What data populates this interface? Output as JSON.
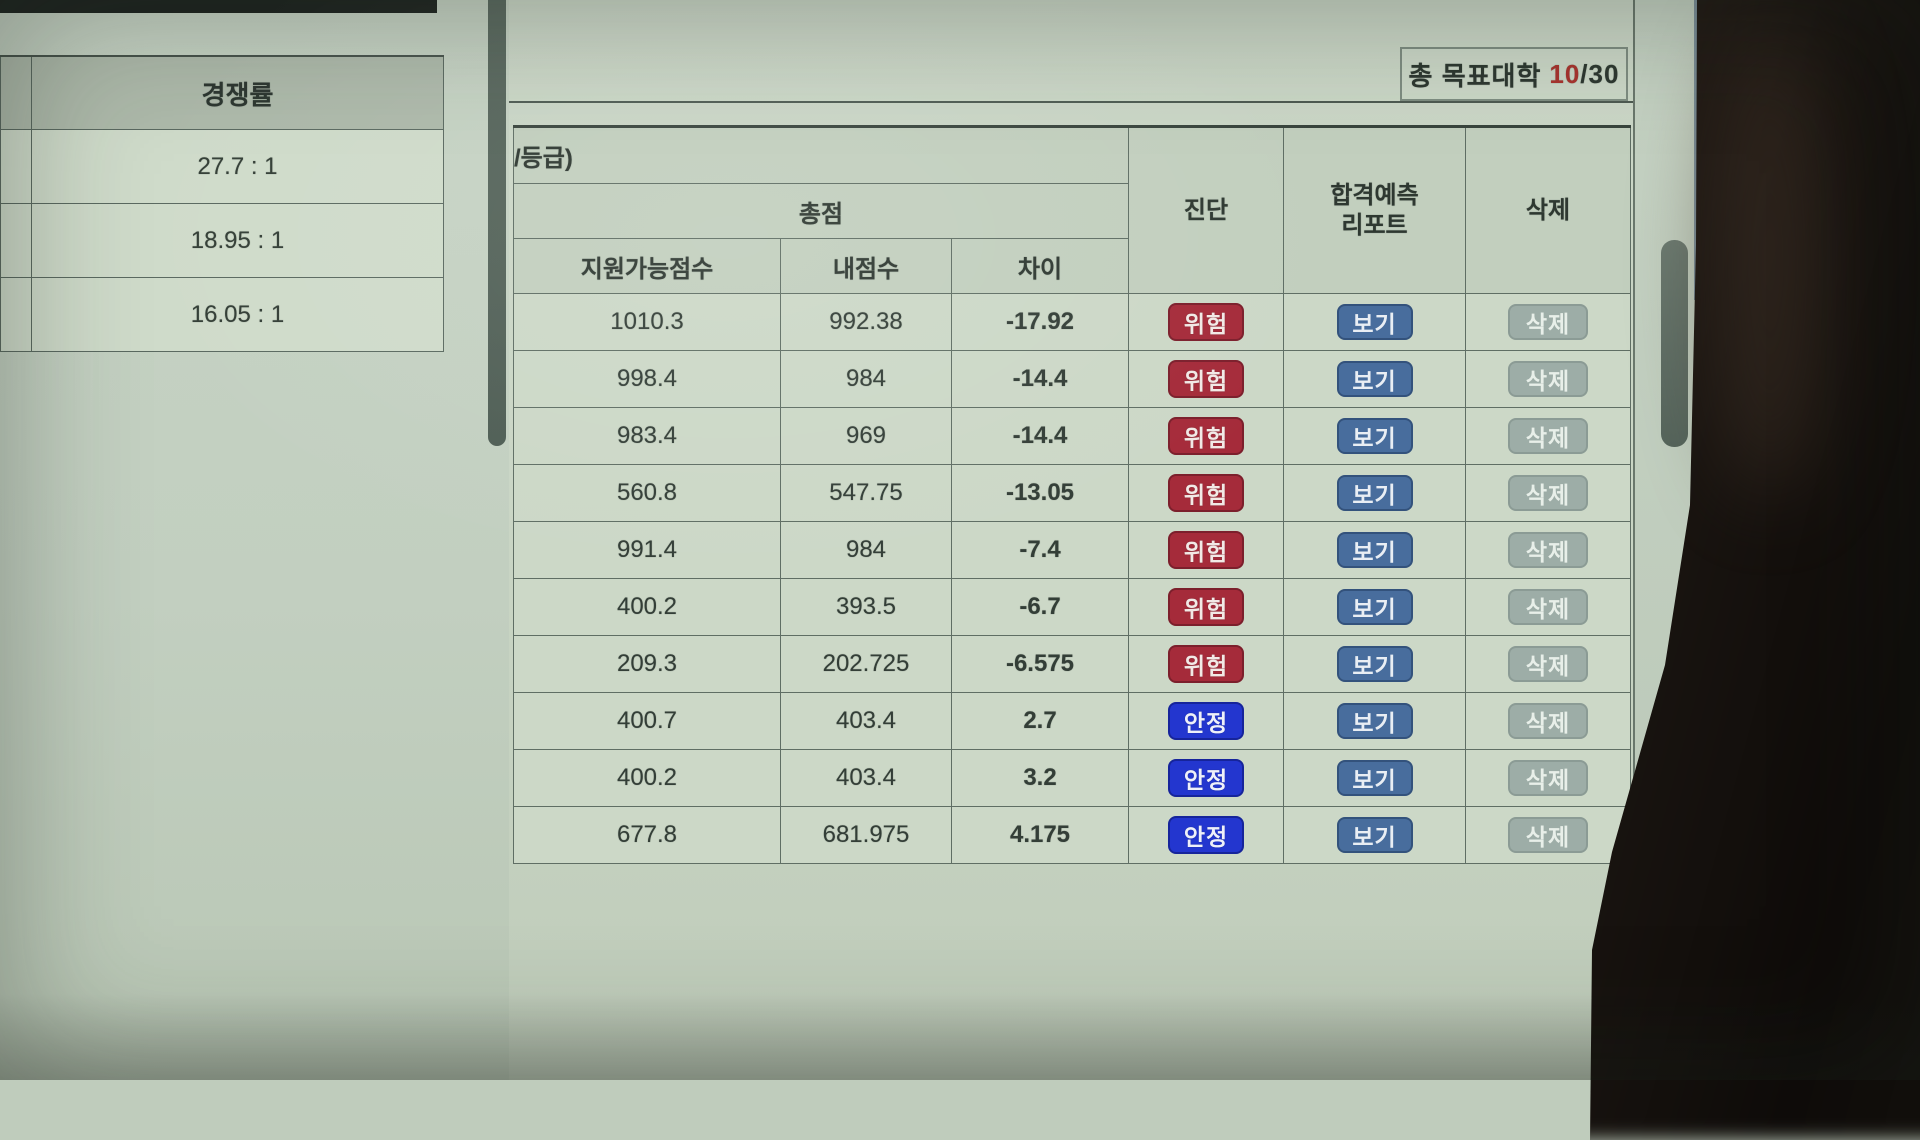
{
  "top_bar": {
    "target_count_label": "총 목표대학",
    "current_count": "10",
    "count_separator": "/",
    "max_count": "30"
  },
  "left_panel": {
    "competition_table": {
      "header": "경쟁률",
      "rows": [
        {
          "rate": "27.7 : 1"
        },
        {
          "rate": "18.95 : 1"
        },
        {
          "rate": "16.05 : 1"
        }
      ]
    }
  },
  "main_table": {
    "partial_header": "/등급)",
    "group_header": "총점",
    "sub_columns": {
      "possible": "지원가능점수",
      "mine": "내점수",
      "diff": "차이"
    },
    "diagnosis_header": "진단",
    "report_header_line1": "합격예측",
    "report_header_line2": "리포트",
    "delete_header": "삭제",
    "labels": {
      "danger": "위험",
      "safe": "안정",
      "view": "보기",
      "delete": "삭제"
    },
    "rows": [
      {
        "possible": "1010.3",
        "mine": "992.38",
        "diff": "-17.92",
        "status": "danger"
      },
      {
        "possible": "998.4",
        "mine": "984",
        "diff": "-14.4",
        "status": "danger"
      },
      {
        "possible": "983.4",
        "mine": "969",
        "diff": "-14.4",
        "status": "danger"
      },
      {
        "possible": "560.8",
        "mine": "547.75",
        "diff": "-13.05",
        "status": "danger"
      },
      {
        "possible": "991.4",
        "mine": "984",
        "diff": "-7.4",
        "status": "danger"
      },
      {
        "possible": "400.2",
        "mine": "393.5",
        "diff": "-6.7",
        "status": "danger"
      },
      {
        "possible": "209.3",
        "mine": "202.725",
        "diff": "-6.575",
        "status": "danger"
      },
      {
        "possible": "400.7",
        "mine": "403.4",
        "diff": "2.7",
        "status": "safe"
      },
      {
        "possible": "400.2",
        "mine": "403.4",
        "diff": "3.2",
        "status": "safe"
      },
      {
        "possible": "677.8",
        "mine": "681.975",
        "diff": "4.175",
        "status": "safe"
      }
    ]
  },
  "colors": {
    "danger_badge": "#a52b3a",
    "safe_badge": "#2336cf",
    "view_button": "#486d9d",
    "delete_button": "#9dada7",
    "positive_diff_text": "#8d4038",
    "count_accent": "#a9342f"
  }
}
